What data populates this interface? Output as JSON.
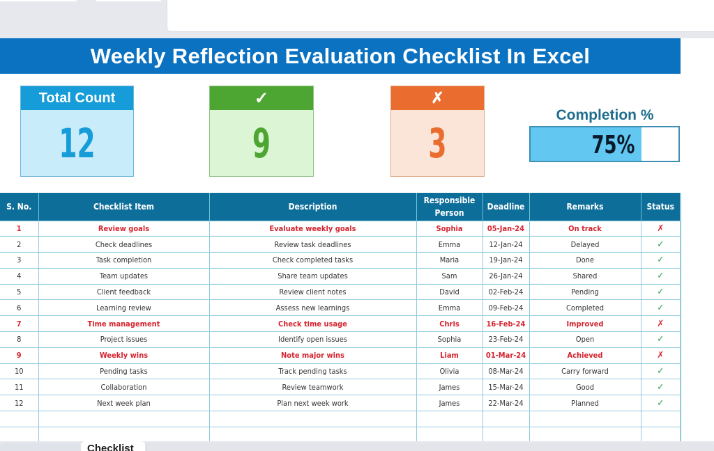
{
  "window": {
    "top_tabs": [
      "",
      ""
    ]
  },
  "banner": {
    "title": "Weekly Reflection Evaluation Checklist In Excel"
  },
  "kpis": {
    "total": {
      "label": "Total Count",
      "value": "12",
      "color": "#169cd8"
    },
    "done": {
      "label": "✓",
      "value": "9",
      "color": "#4ea632"
    },
    "not_done": {
      "label": "✗",
      "value": "3",
      "color": "#ea6c2e"
    },
    "completion": {
      "label": "Completion %",
      "value": "75%",
      "percent": 75,
      "color": "#62c8f1"
    }
  },
  "table": {
    "headers": [
      "S. No.",
      "Checklist Item",
      "Description",
      "Responsible Person",
      "Deadline",
      "Remarks",
      "Status"
    ],
    "rows": [
      {
        "sno": "1",
        "item": "Review goals",
        "description": "Evaluate weekly goals",
        "person": "Sophia",
        "deadline": "05-Jan-24",
        "remarks": "On track",
        "status": "✗",
        "done": false
      },
      {
        "sno": "2",
        "item": "Check deadlines",
        "description": "Review task deadlines",
        "person": "Emma",
        "deadline": "12-Jan-24",
        "remarks": "Delayed",
        "status": "✓",
        "done": true
      },
      {
        "sno": "3",
        "item": "Task completion",
        "description": "Check completed tasks",
        "person": "Maria",
        "deadline": "19-Jan-24",
        "remarks": "Done",
        "status": "✓",
        "done": true
      },
      {
        "sno": "4",
        "item": "Team updates",
        "description": "Share team updates",
        "person": "Sam",
        "deadline": "26-Jan-24",
        "remarks": "Shared",
        "status": "✓",
        "done": true
      },
      {
        "sno": "5",
        "item": "Client feedback",
        "description": "Review client notes",
        "person": "David",
        "deadline": "02-Feb-24",
        "remarks": "Pending",
        "status": "✓",
        "done": true
      },
      {
        "sno": "6",
        "item": "Learning review",
        "description": "Assess new learnings",
        "person": "Emma",
        "deadline": "09-Feb-24",
        "remarks": "Completed",
        "status": "✓",
        "done": true
      },
      {
        "sno": "7",
        "item": "Time management",
        "description": "Check time usage",
        "person": "Chris",
        "deadline": "16-Feb-24",
        "remarks": "Improved",
        "status": "✗",
        "done": false
      },
      {
        "sno": "8",
        "item": "Project issues",
        "description": "Identify open issues",
        "person": "Sophia",
        "deadline": "23-Feb-24",
        "remarks": "Open",
        "status": "✓",
        "done": true
      },
      {
        "sno": "9",
        "item": "Weekly wins",
        "description": "Note major wins",
        "person": "Liam",
        "deadline": "01-Mar-24",
        "remarks": "Achieved",
        "status": "✗",
        "done": false
      },
      {
        "sno": "10",
        "item": "Pending tasks",
        "description": "Track pending tasks",
        "person": "Olivia",
        "deadline": "08-Mar-24",
        "remarks": "Carry forward",
        "status": "✓",
        "done": true
      },
      {
        "sno": "11",
        "item": "Collaboration",
        "description": "Review teamwork",
        "person": "James",
        "deadline": "15-Mar-24",
        "remarks": "Good",
        "status": "✓",
        "done": true
      },
      {
        "sno": "12",
        "item": "Next week plan",
        "description": "Plan next week work",
        "person": "James",
        "deadline": "22-Mar-24",
        "remarks": "Planned",
        "status": "✓",
        "done": true
      }
    ]
  },
  "sheet_tabs": {
    "active": "Checklist"
  },
  "colors": {
    "banner": "#0a72c1",
    "table_header": "#0e6e9a",
    "flag_text": "#d4242f",
    "check": "#1aa14a"
  }
}
